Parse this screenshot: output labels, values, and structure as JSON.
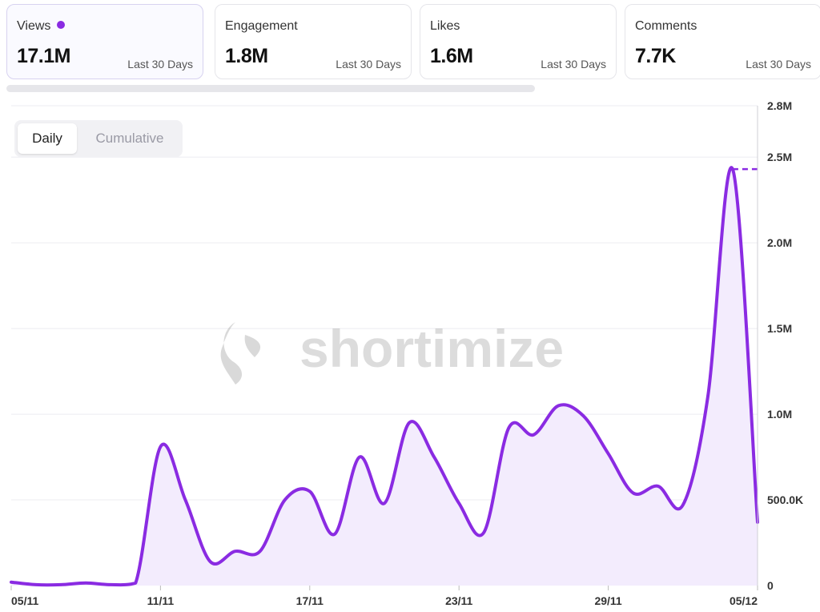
{
  "cards": [
    {
      "label": "Views",
      "value": "17.1M",
      "period": "Last 30 Days",
      "active": true
    },
    {
      "label": "Engagement",
      "value": "1.8M",
      "period": "Last 30 Days",
      "active": false
    },
    {
      "label": "Likes",
      "value": "1.6M",
      "period": "Last 30 Days",
      "active": false
    },
    {
      "label": "Comments",
      "value": "7.7K",
      "period": "Last 30 Days",
      "active": false
    }
  ],
  "toggle": {
    "daily": "Daily",
    "cumulative": "Cumulative",
    "selected": "Daily"
  },
  "watermark": "shortimize",
  "colors": {
    "line": "#8a2be2",
    "fill": "#f3ecfd",
    "grid": "#ececf0",
    "axis": "#cfcfd6",
    "active_dot": "#8a2be2"
  },
  "chart_data": {
    "type": "area",
    "x": [
      "05/11",
      "06/11",
      "07/11",
      "08/11",
      "09/11",
      "10/11",
      "11/11",
      "12/11",
      "13/11",
      "14/11",
      "15/11",
      "16/11",
      "17/11",
      "18/11",
      "19/11",
      "20/11",
      "21/11",
      "22/11",
      "23/11",
      "24/11",
      "25/11",
      "26/11",
      "27/11",
      "28/11",
      "29/11",
      "30/11",
      "01/12",
      "02/12",
      "03/12",
      "04/12",
      "05/12"
    ],
    "xticks": [
      "05/11",
      "11/11",
      "17/11",
      "23/11",
      "29/11",
      "05/12"
    ],
    "series": [
      {
        "values": [
          20000,
          5000,
          5000,
          15000,
          5000,
          15000,
          810000,
          500000,
          140000,
          200000,
          200000,
          500000,
          550000,
          300000,
          750000,
          480000,
          950000,
          750000,
          480000,
          310000,
          920000,
          880000,
          1050000,
          990000,
          770000,
          540000,
          580000,
          470000,
          1100000,
          2430000,
          370000
        ]
      }
    ],
    "yticks": [
      {
        "v": 0,
        "label": "0"
      },
      {
        "v": 500000,
        "label": "500.0K"
      },
      {
        "v": 1000000,
        "label": "1.0M"
      },
      {
        "v": 1500000,
        "label": "1.5M"
      },
      {
        "v": 2000000,
        "label": "2.0M"
      },
      {
        "v": 2500000,
        "label": "2.5M"
      },
      {
        "v": 2800000,
        "label": "2.8M"
      }
    ],
    "ylim": [
      0,
      2800000
    ],
    "peak_reference": 2430000,
    "grid": true,
    "axis_position": "right"
  }
}
